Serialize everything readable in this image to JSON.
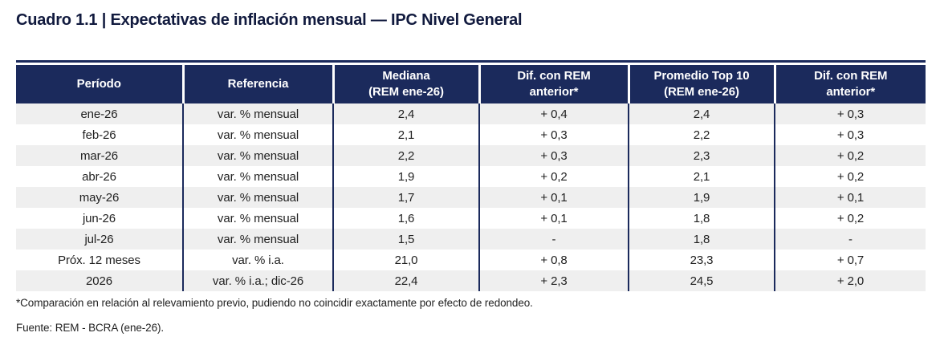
{
  "title": "Cuadro 1.1 | Expectativas de inflación mensual — IPC Nivel General",
  "table": {
    "headers": [
      "Período",
      "Referencia",
      "Mediana\n(REM ene-26)",
      "Dif. con REM\nanterior*",
      "Promedio Top 10\n(REM ene-26)",
      "Dif. con REM\nanterior*"
    ],
    "rows": [
      [
        "ene-26",
        "var. % mensual",
        "2,4",
        "+ 0,4",
        "2,4",
        "+ 0,3"
      ],
      [
        "feb-26",
        "var. % mensual",
        "2,1",
        "+ 0,3",
        "2,2",
        "+ 0,3"
      ],
      [
        "mar-26",
        "var. % mensual",
        "2,2",
        "+ 0,3",
        "2,3",
        "+ 0,2"
      ],
      [
        "abr-26",
        "var. % mensual",
        "1,9",
        "+ 0,2",
        "2,1",
        "+ 0,2"
      ],
      [
        "may-26",
        "var. % mensual",
        "1,7",
        "+ 0,1",
        "1,9",
        "+ 0,1"
      ],
      [
        "jun-26",
        "var. % mensual",
        "1,6",
        "+ 0,1",
        "1,8",
        "+ 0,2"
      ],
      [
        "jul-26",
        "var. % mensual",
        "1,5",
        "-",
        "1,8",
        "-"
      ],
      [
        "Próx. 12 meses",
        "var. % i.a.",
        "21,0",
        "+ 0,8",
        "23,3",
        "+ 0,7"
      ],
      [
        "2026",
        "var. % i.a.; dic-26",
        "22,4",
        "+ 2,3",
        "24,5",
        "+ 2,0"
      ]
    ]
  },
  "footnote": "*Comparación en relación al relevamiento previo, pudiendo no coincidir exactamente por efecto de redondeo.",
  "source": "Fuente: REM - BCRA (ene-26).",
  "colors": {
    "header_bg": "#1b2a5c",
    "header_text": "#ffffff",
    "title_text": "#111a3e",
    "stripe_bg": "#efefef",
    "body_text": "#1f1f1f",
    "border": "#1b2a5c"
  }
}
